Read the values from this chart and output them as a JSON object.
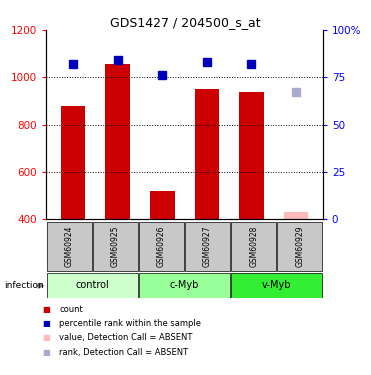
{
  "title": "GDS1427 / 204500_s_at",
  "samples": [
    "GSM60924",
    "GSM60925",
    "GSM60926",
    "GSM60927",
    "GSM60928",
    "GSM60929"
  ],
  "groups": [
    {
      "name": "control",
      "indices": [
        0,
        1
      ],
      "color": "#ccffcc"
    },
    {
      "name": "c-Myb",
      "indices": [
        2,
        3
      ],
      "color": "#99ff99"
    },
    {
      "name": "v-Myb",
      "indices": [
        4,
        5
      ],
      "color": "#33ee33"
    }
  ],
  "bar_values": [
    880,
    1055,
    520,
    950,
    940,
    430
  ],
  "bar_absent": [
    false,
    false,
    false,
    false,
    false,
    true
  ],
  "rank_values": [
    82,
    84,
    76,
    83,
    82,
    67
  ],
  "rank_absent": [
    false,
    false,
    false,
    false,
    false,
    true
  ],
  "ylim_left": [
    400,
    1200
  ],
  "ylim_right": [
    0,
    100
  ],
  "yticks_left": [
    400,
    600,
    800,
    1000,
    1200
  ],
  "yticks_right": [
    0,
    25,
    50,
    75,
    100
  ],
  "bar_color_present": "#cc0000",
  "bar_color_absent": "#ffbbbb",
  "rank_color_present": "#0000bb",
  "rank_color_absent": "#aaaacc",
  "rank_marker_size": 6,
  "bar_width": 0.55,
  "sample_bg": "#c8c8c8",
  "legend_items": [
    {
      "color": "#cc0000",
      "label": "count"
    },
    {
      "color": "#0000bb",
      "label": "percentile rank within the sample"
    },
    {
      "color": "#ffbbbb",
      "label": "value, Detection Call = ABSENT"
    },
    {
      "color": "#aaaacc",
      "label": "rank, Detection Call = ABSENT"
    }
  ]
}
